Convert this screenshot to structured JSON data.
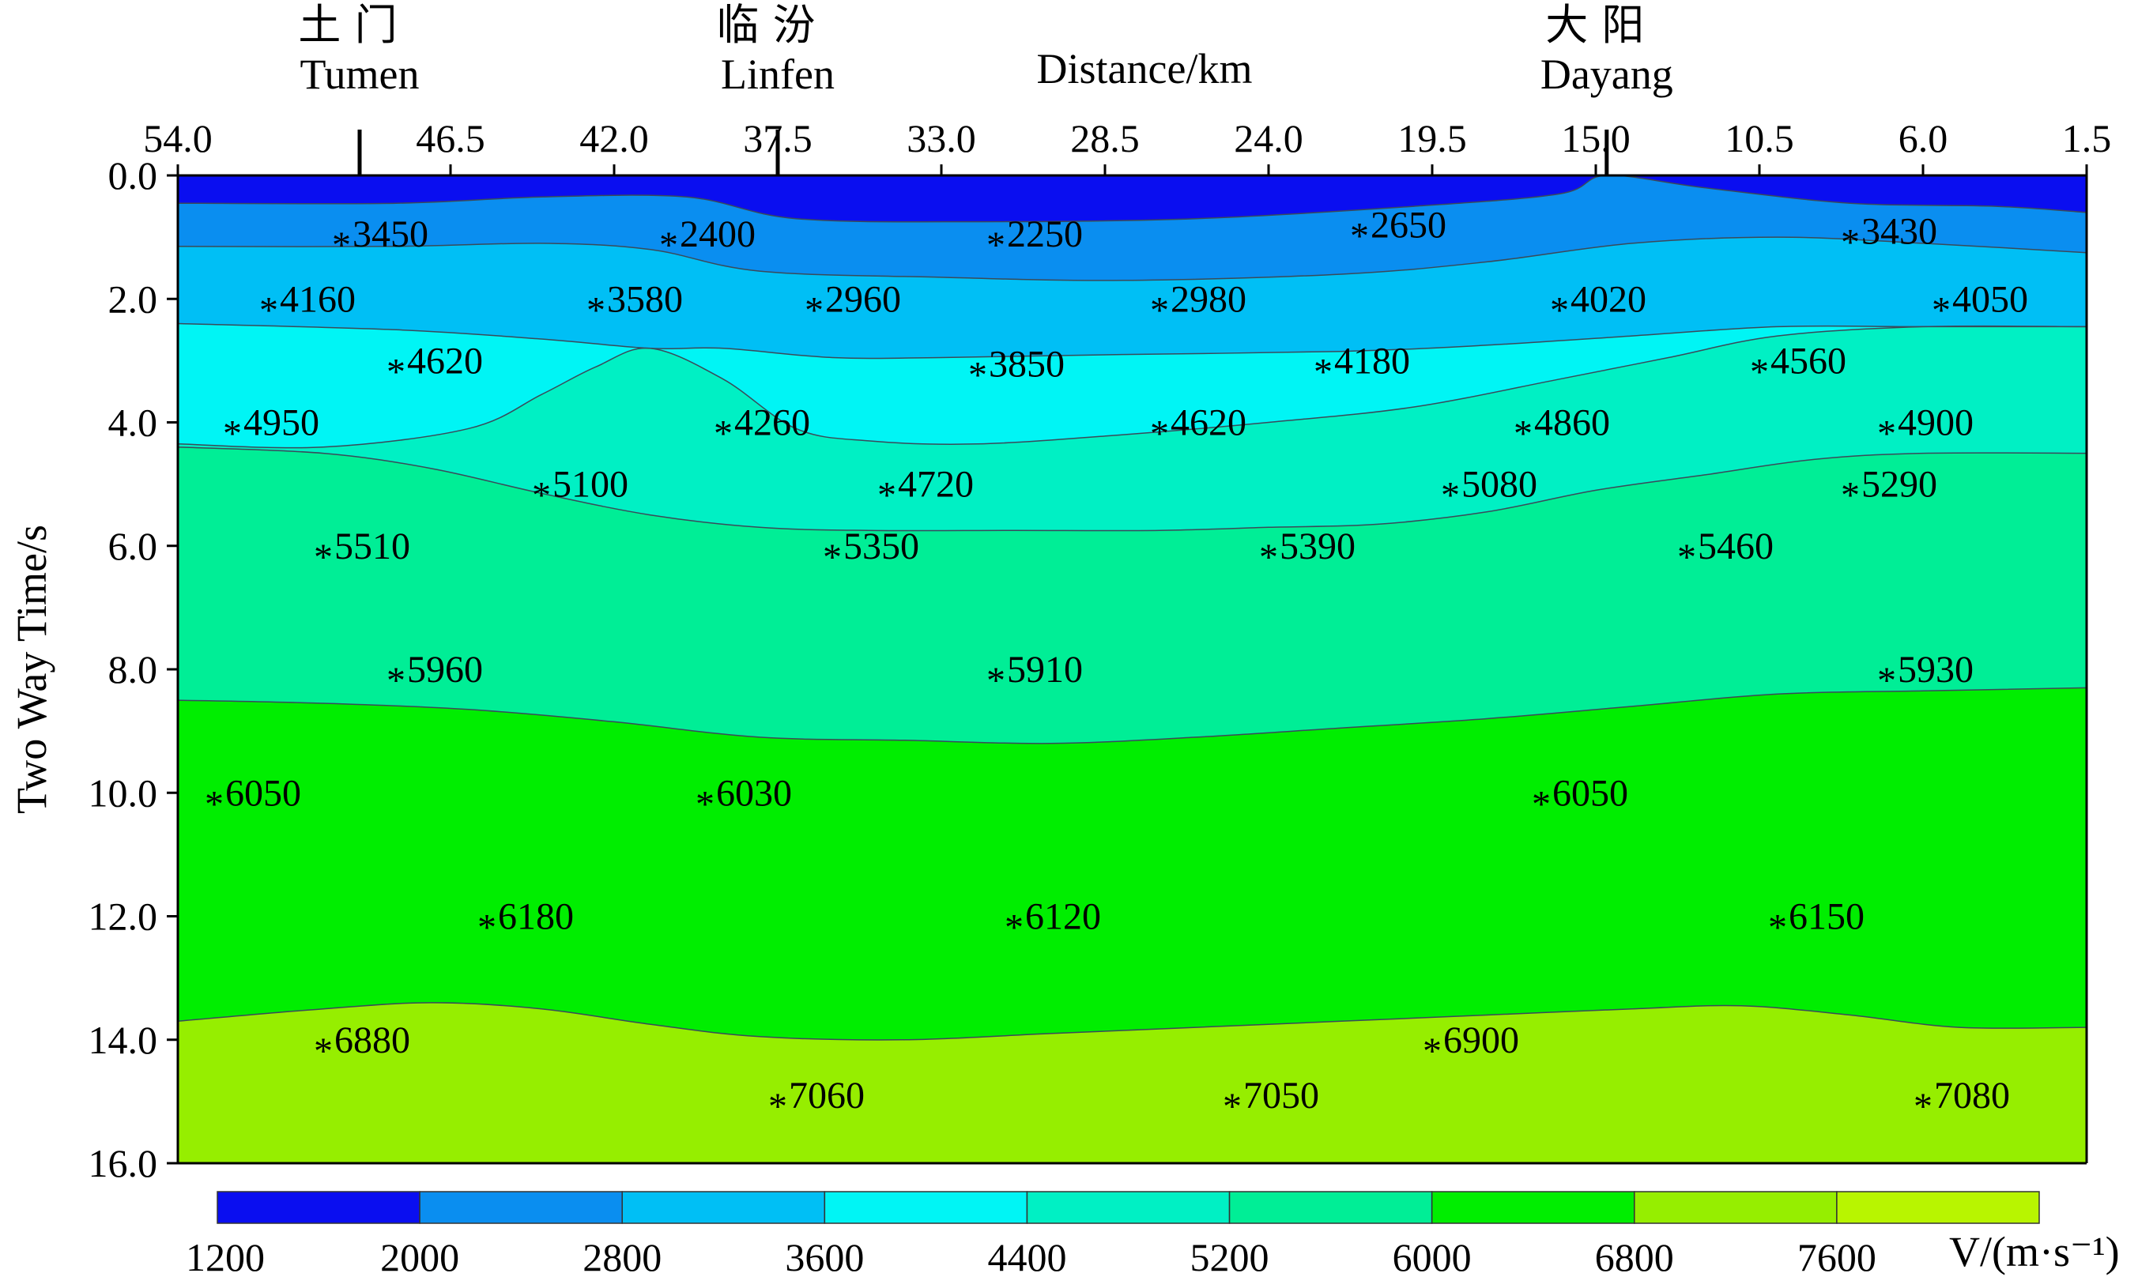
{
  "chart_data": {
    "type": "heatmap",
    "title": "Distance/km",
    "xlabel": "Distance/km",
    "ylabel": "Two Way Time/s",
    "x_ticks": [
      "54.0",
      "46.5",
      "42.0",
      "37.5",
      "33.0",
      "28.5",
      "24.0",
      "19.5",
      "15.0",
      "10.5",
      "6.0",
      "1.5"
    ],
    "y_ticks": [
      "0.0",
      "2.0",
      "4.0",
      "6.0",
      "8.0",
      "10.0",
      "12.0",
      "14.0",
      "16.0"
    ],
    "xlim": [
      54.0,
      1.5
    ],
    "ylim": [
      0,
      16
    ],
    "locations": [
      {
        "cn": "土 门",
        "en": "Tumen",
        "x": 49.0
      },
      {
        "cn": "临 汾",
        "en": "Linfen",
        "x": 37.5
      },
      {
        "cn": "大 阳",
        "en": "Dayang",
        "x": 14.7
      }
    ],
    "colorbar": {
      "label": "V/(m·s⁻¹)",
      "ticks": [
        "1200",
        "2000",
        "2800",
        "3600",
        "4400",
        "5200",
        "6000",
        "6800",
        "7600"
      ],
      "colors": [
        "#0a0ef0",
        "#0a8ef0",
        "#00bff5",
        "#00f5f5",
        "#00f0c4",
        "#00ee96",
        "#00ee00",
        "#96ee00",
        "#b8f500"
      ]
    },
    "layers": [
      {
        "color": "#0a0ef0",
        "boundary": [
          [
            54.0,
            0.0
          ],
          [
            1.5,
            0.0
          ]
        ]
      },
      {
        "color": "#0a8ef0",
        "boundary": [
          [
            54.0,
            0.45
          ],
          [
            48.0,
            0.45
          ],
          [
            44.0,
            0.35
          ],
          [
            40.0,
            0.35
          ],
          [
            37.0,
            0.7
          ],
          [
            32.0,
            0.75
          ],
          [
            26.0,
            0.7
          ],
          [
            20.0,
            0.5
          ],
          [
            16.0,
            0.3
          ],
          [
            14.7,
            0.0
          ],
          [
            12.0,
            0.2
          ],
          [
            8.0,
            0.45
          ],
          [
            4.0,
            0.5
          ],
          [
            1.5,
            0.6
          ]
        ]
      },
      {
        "color": "#00bff5",
        "boundary": [
          [
            54.0,
            1.15
          ],
          [
            48.0,
            1.15
          ],
          [
            44.0,
            1.1
          ],
          [
            41.0,
            1.2
          ],
          [
            38.0,
            1.55
          ],
          [
            33.0,
            1.65
          ],
          [
            28.0,
            1.7
          ],
          [
            22.0,
            1.6
          ],
          [
            18.0,
            1.4
          ],
          [
            14.0,
            1.1
          ],
          [
            10.0,
            1.0
          ],
          [
            6.0,
            1.1
          ],
          [
            1.5,
            1.25
          ]
        ]
      },
      {
        "color": "#00f5f5",
        "boundary": [
          [
            54.0,
            2.4
          ],
          [
            48.0,
            2.5
          ],
          [
            44.0,
            2.65
          ],
          [
            41.0,
            2.8
          ],
          [
            39.0,
            2.8
          ],
          [
            36.0,
            2.95
          ],
          [
            33.0,
            2.95
          ],
          [
            28.0,
            2.9
          ],
          [
            22.0,
            2.85
          ],
          [
            18.0,
            2.75
          ],
          [
            14.0,
            2.6
          ],
          [
            10.0,
            2.45
          ],
          [
            6.0,
            2.45
          ],
          [
            1.5,
            2.45
          ]
        ]
      },
      {
        "color": "#00f0c4",
        "boundary": [
          [
            54.0,
            4.35
          ],
          [
            50.0,
            4.4
          ],
          [
            46.0,
            4.1
          ],
          [
            44.0,
            3.55
          ],
          [
            42.5,
            3.1
          ],
          [
            41.0,
            2.8
          ],
          [
            39.0,
            3.3
          ],
          [
            37.0,
            4.1
          ],
          [
            35.0,
            4.3
          ],
          [
            32.0,
            4.35
          ],
          [
            28.0,
            4.2
          ],
          [
            24.0,
            4.0
          ],
          [
            20.0,
            3.75
          ],
          [
            16.0,
            3.3
          ],
          [
            13.0,
            2.95
          ],
          [
            10.0,
            2.6
          ],
          [
            6.0,
            2.45
          ],
          [
            1.5,
            2.45
          ]
        ]
      },
      {
        "color": "#00ee96",
        "boundary": [
          [
            54.0,
            4.4
          ],
          [
            50.0,
            4.5
          ],
          [
            47.0,
            4.75
          ],
          [
            44.0,
            5.15
          ],
          [
            41.0,
            5.5
          ],
          [
            38.0,
            5.7
          ],
          [
            35.0,
            5.75
          ],
          [
            31.0,
            5.75
          ],
          [
            27.0,
            5.75
          ],
          [
            24.0,
            5.7
          ],
          [
            21.0,
            5.65
          ],
          [
            18.0,
            5.45
          ],
          [
            15.0,
            5.1
          ],
          [
            12.0,
            4.85
          ],
          [
            9.0,
            4.6
          ],
          [
            6.0,
            4.5
          ],
          [
            1.5,
            4.5
          ]
        ]
      },
      {
        "color": "#00ee00",
        "boundary": [
          [
            54.0,
            8.5
          ],
          [
            50.0,
            8.55
          ],
          [
            46.0,
            8.65
          ],
          [
            42.0,
            8.85
          ],
          [
            38.0,
            9.1
          ],
          [
            34.0,
            9.15
          ],
          [
            30.0,
            9.2
          ],
          [
            26.0,
            9.1
          ],
          [
            22.0,
            8.95
          ],
          [
            18.0,
            8.8
          ],
          [
            14.0,
            8.6
          ],
          [
            10.0,
            8.4
          ],
          [
            6.0,
            8.35
          ],
          [
            1.5,
            8.3
          ]
        ]
      },
      {
        "color": "#96ee00",
        "boundary": [
          [
            54.0,
            13.7
          ],
          [
            50.0,
            13.5
          ],
          [
            47.0,
            13.4
          ],
          [
            44.0,
            13.5
          ],
          [
            41.0,
            13.75
          ],
          [
            38.0,
            13.95
          ],
          [
            34.0,
            14.0
          ],
          [
            30.0,
            13.9
          ],
          [
            26.0,
            13.8
          ],
          [
            22.0,
            13.7
          ],
          [
            18.0,
            13.6
          ],
          [
            14.0,
            13.5
          ],
          [
            11.0,
            13.45
          ],
          [
            8.0,
            13.6
          ],
          [
            5.0,
            13.8
          ],
          [
            1.5,
            13.8
          ]
        ]
      }
    ],
    "points": [
      {
        "x": 49.5,
        "t": 0.95,
        "label": "3450"
      },
      {
        "x": 40.5,
        "t": 0.95,
        "label": "2400"
      },
      {
        "x": 31.5,
        "t": 0.95,
        "label": "2250"
      },
      {
        "x": 21.5,
        "t": 0.8,
        "label": "2650"
      },
      {
        "x": 8.0,
        "t": 0.9,
        "label": "3430"
      },
      {
        "x": 51.5,
        "t": 2.0,
        "label": "4160"
      },
      {
        "x": 42.5,
        "t": 2.0,
        "label": "3580"
      },
      {
        "x": 36.5,
        "t": 2.0,
        "label": "2960"
      },
      {
        "x": 27.0,
        "t": 2.0,
        "label": "2980"
      },
      {
        "x": 16.0,
        "t": 2.0,
        "label": "4020"
      },
      {
        "x": 5.5,
        "t": 2.0,
        "label": "4050"
      },
      {
        "x": 48.0,
        "t": 3.0,
        "label": "4620"
      },
      {
        "x": 32.0,
        "t": 3.05,
        "label": "3850"
      },
      {
        "x": 22.5,
        "t": 3.0,
        "label": "4180"
      },
      {
        "x": 10.5,
        "t": 3.0,
        "label": "4560"
      },
      {
        "x": 52.5,
        "t": 4.0,
        "label": "4950"
      },
      {
        "x": 39.0,
        "t": 4.0,
        "label": "4260"
      },
      {
        "x": 27.0,
        "t": 4.0,
        "label": "4620"
      },
      {
        "x": 17.0,
        "t": 4.0,
        "label": "4860"
      },
      {
        "x": 7.0,
        "t": 4.0,
        "label": "4900"
      },
      {
        "x": 44.0,
        "t": 5.0,
        "label": "5100"
      },
      {
        "x": 34.5,
        "t": 5.0,
        "label": "4720"
      },
      {
        "x": 19.0,
        "t": 5.0,
        "label": "5080"
      },
      {
        "x": 8.0,
        "t": 5.0,
        "label": "5290"
      },
      {
        "x": 50.0,
        "t": 6.0,
        "label": "5510"
      },
      {
        "x": 36.0,
        "t": 6.0,
        "label": "5350"
      },
      {
        "x": 24.0,
        "t": 6.0,
        "label": "5390"
      },
      {
        "x": 12.5,
        "t": 6.0,
        "label": "5460"
      },
      {
        "x": 48.0,
        "t": 8.0,
        "label": "5960"
      },
      {
        "x": 31.5,
        "t": 8.0,
        "label": "5910"
      },
      {
        "x": 7.0,
        "t": 8.0,
        "label": "5930"
      },
      {
        "x": 53.0,
        "t": 10.0,
        "label": "6050"
      },
      {
        "x": 39.5,
        "t": 10.0,
        "label": "6030"
      },
      {
        "x": 16.5,
        "t": 10.0,
        "label": "6050"
      },
      {
        "x": 45.5,
        "t": 12.0,
        "label": "6180"
      },
      {
        "x": 31.0,
        "t": 12.0,
        "label": "6120"
      },
      {
        "x": 10.0,
        "t": 12.0,
        "label": "6150"
      },
      {
        "x": 50.0,
        "t": 14.0,
        "label": "6880"
      },
      {
        "x": 19.5,
        "t": 14.0,
        "label": "6900"
      },
      {
        "x": 37.5,
        "t": 14.9,
        "label": "7060"
      },
      {
        "x": 25.0,
        "t": 14.9,
        "label": "7050"
      },
      {
        "x": 6.0,
        "t": 14.9,
        "label": "7080"
      }
    ]
  }
}
